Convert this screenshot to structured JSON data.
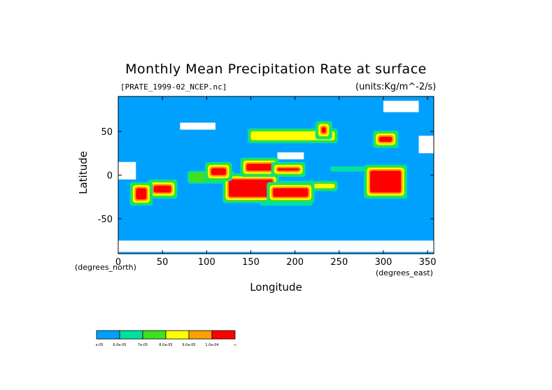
{
  "chart_data": {
    "type": "heatmap",
    "title": "Monthly Mean Precipitation Rate at surface",
    "subtitle_left": "[PRATE_1999-02_NCEP.nc]",
    "subtitle_right": "(units:Kg/m^-2/s)",
    "xlabel": "Longitude",
    "ylabel": "Latitude",
    "x_units": "(degrees_north)",
    "x_units_right": "(degrees_east)",
    "xlim": [
      0,
      357
    ],
    "ylim": [
      -90,
      90
    ],
    "xticks": [
      0,
      50,
      100,
      150,
      200,
      250,
      300,
      350
    ],
    "yticks": [
      50,
      0,
      -50
    ],
    "grid": false,
    "colorbar": {
      "levels": [
        "5.0e-05",
        "6.0e-05",
        "7e-05",
        "8.0e-05",
        "9.0e-05",
        "1.0e-04",
        "∞"
      ],
      "colors": [
        "#00a0ff",
        "#00e0a0",
        "#40e020",
        "#ffff00",
        "#ffa000",
        "#ff0000"
      ]
    },
    "regions": [
      {
        "level": 5,
        "lon": [
          125,
          175
        ],
        "lat": [
          -25,
          -5
        ]
      },
      {
        "level": 5,
        "lon": [
          175,
          215
        ],
        "lat": [
          -25,
          -15
        ]
      },
      {
        "level": 5,
        "lon": [
          145,
          175
        ],
        "lat": [
          5,
          13
        ]
      },
      {
        "level": 5,
        "lon": [
          180,
          205
        ],
        "lat": [
          5,
          8
        ]
      },
      {
        "level": 5,
        "lon": [
          285,
          320
        ],
        "lat": [
          -20,
          5
        ]
      },
      {
        "level": 5,
        "lon": [
          40,
          60
        ],
        "lat": [
          -20,
          -12
        ]
      },
      {
        "level": 5,
        "lon": [
          20,
          32
        ],
        "lat": [
          -28,
          -15
        ]
      },
      {
        "level": 5,
        "lon": [
          295,
          310
        ],
        "lat": [
          38,
          44
        ]
      },
      {
        "level": 5,
        "lon": [
          230,
          235
        ],
        "lat": [
          48,
          55
        ]
      },
      {
        "level": 5,
        "lon": [
          105,
          122
        ],
        "lat": [
          0,
          8
        ]
      },
      {
        "level": 3,
        "lon": [
          185,
          245
        ],
        "lat": [
          -15,
          -10
        ]
      },
      {
        "level": 3,
        "lon": [
          150,
          245
        ],
        "lat": [
          40,
          50
        ]
      },
      {
        "level": 2,
        "lon": [
          80,
          130
        ],
        "lat": [
          -8,
          3
        ]
      },
      {
        "level": 1,
        "lon": [
          240,
          280
        ],
        "lat": [
          4,
          10
        ]
      },
      {
        "level": 1,
        "lon": [
          160,
          220
        ],
        "lat": [
          -35,
          -28
        ]
      }
    ],
    "no_data_regions": [
      {
        "lon": [
          0,
          20
        ],
        "lat": [
          -5,
          15
        ]
      },
      {
        "lon": [
          180,
          210
        ],
        "lat": [
          18,
          26
        ]
      },
      {
        "lon": [
          70,
          110
        ],
        "lat": [
          52,
          60
        ]
      },
      {
        "lon": [
          0,
          357
        ],
        "lat": [
          -88,
          -75
        ]
      },
      {
        "lon": [
          300,
          340
        ],
        "lat": [
          72,
          85
        ]
      },
      {
        "lon": [
          340,
          357
        ],
        "lat": [
          25,
          45
        ]
      }
    ]
  }
}
